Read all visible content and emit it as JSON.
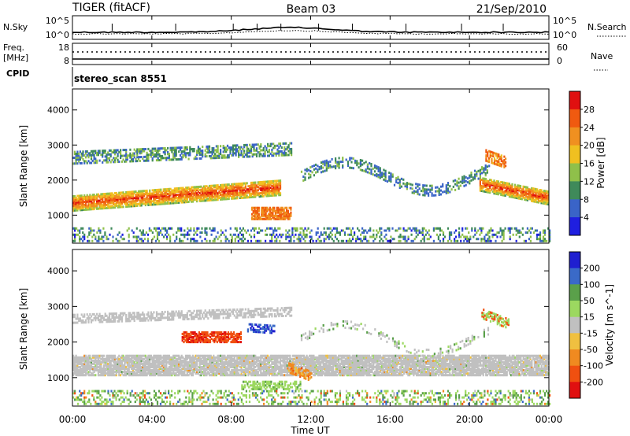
{
  "header": {
    "title": "TIGER (fitACF)",
    "beam": "Beam 03",
    "date": "21/Sep/2010"
  },
  "time_axis": {
    "label": "Time UT",
    "ticks": [
      "00:00",
      "04:00",
      "08:00",
      "12:00",
      "16:00",
      "20:00",
      "00:00"
    ],
    "tick_hours": [
      0,
      4,
      8,
      12,
      16,
      20,
      24
    ],
    "range_hours": [
      0,
      24
    ]
  },
  "noise_panel": {
    "left_label": "N.Sky",
    "left_ticks": [
      "10^5",
      "10^0"
    ],
    "right_label": "N.Search",
    "right_ticks": [
      "10^5",
      "10^0"
    ]
  },
  "freq_panel": {
    "left_label_1": "Freq.",
    "left_label_2": "[MHz]",
    "left_ticks": [
      "18",
      "8"
    ],
    "right_label": "Nave",
    "right_ticks": [
      "60",
      "0"
    ],
    "cpid_label": "CPID",
    "cpid_name": "stereo_scan 8551"
  },
  "chart_data": [
    {
      "type": "heatmap",
      "title": "Power",
      "ylabel": "Slant Range [km]",
      "xlabel": "Time UT",
      "xlim": [
        0,
        24
      ],
      "ylim": [
        200,
        4600
      ],
      "yticks": [
        1000,
        2000,
        3000,
        4000
      ],
      "colorbar": {
        "label": "Power [dB]",
        "ticks": [
          4,
          8,
          12,
          16,
          20,
          24,
          28
        ],
        "colors": [
          "#1f1fe0",
          "#3a64c8",
          "#3f8a5a",
          "#8fc04a",
          "#f0c020",
          "#f09020",
          "#f05a10",
          "#e01010"
        ]
      },
      "features": [
        {
          "name": "main-echo-band",
          "time_start": 0.0,
          "time_end": 10.5,
          "range_center_km_start": 1350,
          "range_center_km_end": 1800,
          "power_db": 26
        },
        {
          "name": "upper-echo-band",
          "time_start": 0.0,
          "time_end": 11.0,
          "range_center_km_start": 2650,
          "range_center_km_end": 2900,
          "power_db": 12
        },
        {
          "name": "late-echo-band",
          "time_start": 20.5,
          "time_end": 24.0,
          "range_center_km_start": 1900,
          "range_center_km_end": 1500,
          "power_db": 25
        },
        {
          "name": "arc-echo",
          "time_start": 11.5,
          "time_end": 21.0,
          "range_center_km": 2300,
          "power_db": 10
        },
        {
          "name": "near-range-noise",
          "time_start": 0.0,
          "time_end": 24.0,
          "range_center_km": 450,
          "power_db": 8
        }
      ]
    },
    {
      "type": "heatmap",
      "title": "Velocity",
      "ylabel": "Slant Range [km]",
      "xlabel": "Time UT",
      "xlim": [
        0,
        24
      ],
      "ylim": [
        200,
        4600
      ],
      "yticks": [
        1000,
        2000,
        3000,
        4000
      ],
      "colorbar": {
        "label": "Velocity [m s^-1]",
        "ticks": [
          200,
          100,
          50,
          15,
          -15,
          -50,
          -100,
          -200
        ],
        "colors": [
          "#1f1fd0",
          "#3a6ac8",
          "#5aa04a",
          "#9cd860",
          "#c0c0c0",
          "#f0c040",
          "#f08a20",
          "#f05010",
          "#e01010"
        ]
      },
      "features": [
        {
          "name": "ground-scatter-band",
          "time_start": 0.0,
          "time_end": 24.0,
          "range_center_km": 1350,
          "velocity_ms": 0
        },
        {
          "name": "negative-velocity-patch",
          "time_start": 5.5,
          "time_end": 8.5,
          "range_center_km": 2150,
          "velocity_ms": -180
        },
        {
          "name": "positive-velocity-patch",
          "time_start": 8.8,
          "time_end": 10.2,
          "range_center_km": 2400,
          "velocity_ms": 180
        }
      ]
    }
  ]
}
